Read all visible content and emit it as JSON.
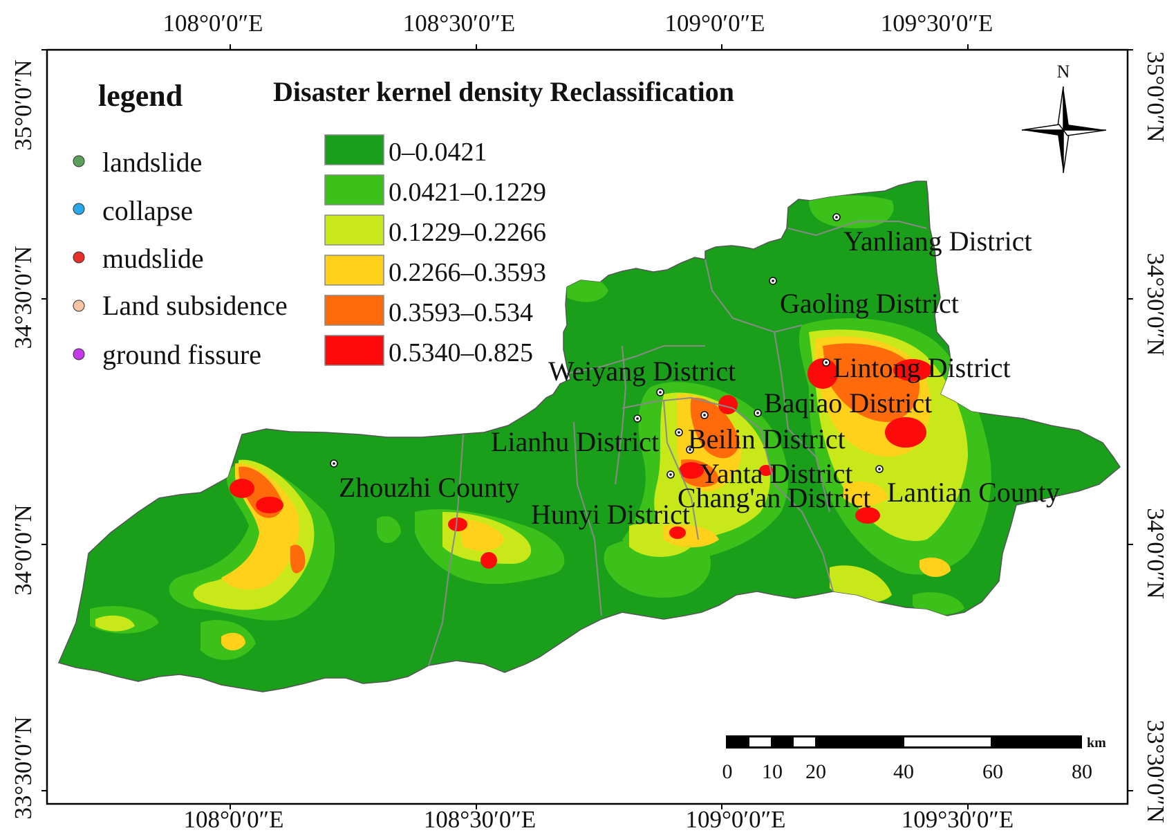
{
  "title": "Disaster kernel density Reclassification",
  "legend": {
    "heading": "legend",
    "point_items": [
      {
        "label": "landslide",
        "color": "#5aa05a"
      },
      {
        "label": "collapse",
        "color": "#2aa7e8"
      },
      {
        "label": "mudslide",
        "color": "#e8302a"
      },
      {
        "label": "Land subsidence",
        "color": "#f7c4a3"
      },
      {
        "label": "ground fissure",
        "color": "#c43ae8"
      }
    ],
    "density_classes": [
      {
        "label": "0–0.0421",
        "color": "#1a9f1a"
      },
      {
        "label": "0.0421–0.1229",
        "color": "#3cc01a"
      },
      {
        "label": "0.1229–0.2266",
        "color": "#c8e81a"
      },
      {
        "label": "0.2266–0.3593",
        "color": "#ffd11a"
      },
      {
        "label": "0.3593–0.534",
        "color": "#ff6a0a"
      },
      {
        "label": "0.5340–0.825",
        "color": "#ff0a0a"
      }
    ]
  },
  "axes": {
    "top_labels": [
      "108°0′0″E",
      "108°30′0″E",
      "109°0′0″E",
      "109°30′0″E"
    ],
    "bottom_labels": [
      "108°0′0″E",
      "108°30′0″E",
      "109°0′0″E",
      "109°30′0″E"
    ],
    "left_labels": [
      "35°0′0″N",
      "34°30′0″N",
      "34°0′0″N",
      "33°30′0″N"
    ],
    "right_labels": [
      "35°0′0″N",
      "34°30′0″N",
      "34°0′0″N",
      "33°30′0″N"
    ]
  },
  "districts": [
    "Yanliang District",
    "Gaoling District",
    "Lintong District",
    "Weiyang District",
    "Baqiao District",
    "Lianhu District",
    "Beilin District",
    "Yanta District",
    "Chang'an District",
    "Lantian County",
    "Zhouzhi County",
    "Hunyi District"
  ],
  "north_arrow": {
    "label": "N",
    "icon": "compass-rose-icon"
  },
  "scale_bar": {
    "unit": "km",
    "ticks": [
      "0",
      "10",
      "20",
      "40",
      "60",
      "80"
    ]
  }
}
